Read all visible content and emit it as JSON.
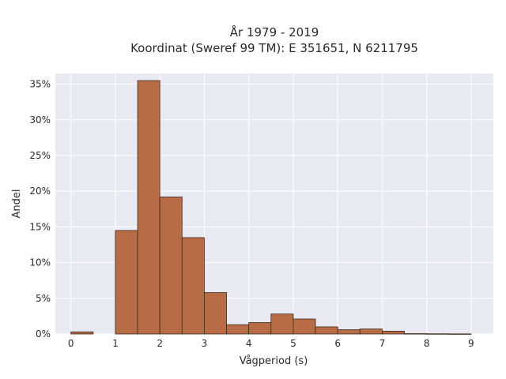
{
  "chart_data": {
    "type": "bar",
    "title": "År 1979 - 2019",
    "subtitle": "Koordinat (Sweref 99 TM): E 351651, N 6211795",
    "xlabel": "Vågperiod (s)",
    "ylabel": "Andel",
    "bin_width": 0.5,
    "bins": [
      {
        "x_start": 0.0,
        "x_end": 0.5,
        "value": 0.3
      },
      {
        "x_start": 1.0,
        "x_end": 1.5,
        "value": 14.5
      },
      {
        "x_start": 1.5,
        "x_end": 2.0,
        "value": 35.5
      },
      {
        "x_start": 2.0,
        "x_end": 2.5,
        "value": 19.2
      },
      {
        "x_start": 2.5,
        "x_end": 3.0,
        "value": 13.5
      },
      {
        "x_start": 3.0,
        "x_end": 3.5,
        "value": 5.8
      },
      {
        "x_start": 3.5,
        "x_end": 4.0,
        "value": 1.3
      },
      {
        "x_start": 4.0,
        "x_end": 4.5,
        "value": 1.6
      },
      {
        "x_start": 4.5,
        "x_end": 5.0,
        "value": 2.8
      },
      {
        "x_start": 5.0,
        "x_end": 5.5,
        "value": 2.1
      },
      {
        "x_start": 5.5,
        "x_end": 6.0,
        "value": 1.0
      },
      {
        "x_start": 6.0,
        "x_end": 6.5,
        "value": 0.6
      },
      {
        "x_start": 6.5,
        "x_end": 7.0,
        "value": 0.7
      },
      {
        "x_start": 7.0,
        "x_end": 7.5,
        "value": 0.4
      },
      {
        "x_start": 7.5,
        "x_end": 8.0,
        "value": 0.05
      },
      {
        "x_start": 8.0,
        "x_end": 8.5,
        "value": 0.03
      },
      {
        "x_start": 8.5,
        "x_end": 9.0,
        "value": 0.02
      }
    ],
    "xlim": [
      -0.35,
      9.5
    ],
    "ylim": [
      0,
      36.5
    ],
    "xticks": [
      0,
      1,
      2,
      3,
      4,
      5,
      6,
      7,
      8,
      9
    ],
    "xtick_labels": [
      "0",
      "1",
      "2",
      "3",
      "4",
      "5",
      "6",
      "7",
      "8",
      "9"
    ],
    "yticks": [
      0,
      5,
      10,
      15,
      20,
      25,
      30,
      35
    ],
    "ytick_labels": [
      "0%",
      "5%",
      "10%",
      "15%",
      "20%",
      "25%",
      "30%",
      "35%"
    ],
    "grid": true,
    "colors": {
      "bar_fill": "#b86c45",
      "bar_edge": "#3b2a20",
      "plot_background": "#e9e9f1",
      "grid": "#ffffff"
    }
  }
}
